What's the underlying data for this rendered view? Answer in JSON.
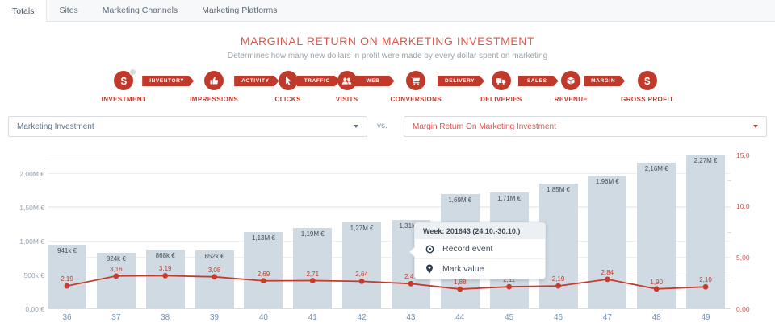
{
  "tabs": {
    "items": [
      {
        "label": "Totals",
        "active": true
      },
      {
        "label": "Sites",
        "active": false
      },
      {
        "label": "Marketing Channels",
        "active": false
      },
      {
        "label": "Marketing Platforms",
        "active": false
      }
    ]
  },
  "header": {
    "title": "MARGINAL RETURN ON MARKETING INVESTMENT",
    "subtitle": "Determines how many new dollars in profit were made by every dollar spent on marketing"
  },
  "funnel": {
    "accent_color": "#bf3a2b",
    "stages": [
      {
        "icon": "dollar-icon",
        "label": "INVESTMENT",
        "banner": "INVENTORY"
      },
      {
        "icon": "thumb-up-icon",
        "label": "IMPRESSIONS",
        "banner": "ACTIVITY"
      },
      {
        "icon": "cursor-click-icon",
        "label": "CLICKS",
        "banner": "TRAFFIC"
      },
      {
        "icon": "users-icon",
        "label": "VISITS",
        "banner": "WEB"
      },
      {
        "icon": "cart-icon",
        "label": "CONVERSIONS",
        "banner": "DELIVERY"
      },
      {
        "icon": "truck-icon",
        "label": "DELIVERIES",
        "banner": "SALES"
      },
      {
        "icon": "box-icon",
        "label": "REVENUE",
        "banner": "MARGIN"
      },
      {
        "icon": "dollar-icon",
        "label": "GROSS PROFIT",
        "banner": null
      }
    ]
  },
  "selectors": {
    "left_value": "Marketing Investment",
    "separator": "vs.",
    "right_value": "Margin Return On Marketing Investment"
  },
  "chart_data": {
    "type": "bar+line combo",
    "categories": [
      36,
      37,
      38,
      39,
      40,
      41,
      42,
      43,
      44,
      45,
      46,
      47,
      48,
      49
    ],
    "series": [
      {
        "name": "Marketing Investment",
        "type": "bar",
        "axis": "left",
        "unit": "EUR",
        "color": "#cfdae3",
        "values": [
          941000,
          824000,
          868000,
          852000,
          1130000,
          1190000,
          1270000,
          1310000,
          1690000,
          1710000,
          1850000,
          1960000,
          2160000,
          2270000
        ],
        "labels": [
          "941k €",
          "824k €",
          "868k €",
          "852k €",
          "1,13M €",
          "1,19M €",
          "1,27M €",
          "1,31M €",
          "1,69M €",
          "1,71M €",
          "1,85M €",
          "1,96M €",
          "2,16M €",
          "2,27M €"
        ]
      },
      {
        "name": "Margin Return On Marketing Investment",
        "type": "line",
        "axis": "right",
        "color": "#c43c2e",
        "values": [
          2.19,
          3.16,
          3.19,
          3.08,
          2.69,
          2.71,
          2.64,
          2.41,
          1.88,
          2.11,
          2.19,
          2.84,
          1.9,
          2.1
        ],
        "labels": [
          "2,19",
          "3,16",
          "3,19",
          "3,08",
          "2,69",
          "2,71",
          "2,64",
          "2,41",
          "1,88",
          "2,11",
          "2,19",
          "2,84",
          "1,90",
          "2,10"
        ]
      }
    ],
    "left_axis": {
      "range": [
        0,
        2000000
      ],
      "ticks": [
        {
          "value": 0,
          "label": "0,00 €"
        },
        {
          "value": 500000,
          "label": "500k €"
        },
        {
          "value": 1000000,
          "label": "1,00M €"
        },
        {
          "value": 1500000,
          "label": "1,50M €"
        },
        {
          "value": 2000000,
          "label": "2,00M €"
        }
      ]
    },
    "right_axis": {
      "range": [
        0,
        15
      ],
      "minor_ticks": [
        2.5,
        7.5,
        12.5
      ],
      "ticks": [
        {
          "value": 0,
          "label": "0,00"
        },
        {
          "value": 5,
          "label": "5,00"
        },
        {
          "value": 10,
          "label": "10,0"
        },
        {
          "value": 15,
          "label": "15,0"
        }
      ]
    },
    "grid": true,
    "legend": false
  },
  "tooltip": {
    "week_index": 7,
    "title": "Week: 201643 (24.10.-30.10.)",
    "items": [
      {
        "icon": "record-event-icon",
        "label": "Record event"
      },
      {
        "icon": "mark-value-icon",
        "label": "Mark value"
      }
    ]
  }
}
